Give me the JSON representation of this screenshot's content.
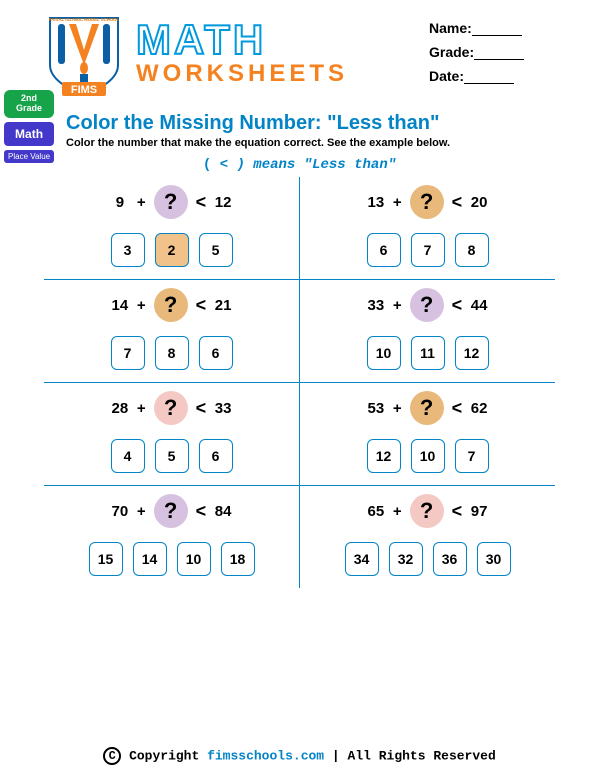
{
  "header": {
    "logo_top_text": "FAISAL ISLAMIC MODEL SCHOOL",
    "logo_bottom_text": "FIMS",
    "math_title": "MATH",
    "worksheets_title": "WORKSHEETS",
    "name_label": "Name:",
    "grade_label": "Grade:",
    "date_label": "Date:"
  },
  "side": {
    "grade_badge_line1": "2nd",
    "grade_badge_line2": "Grade",
    "math_badge": "Math",
    "topic_badge": "Place Value"
  },
  "instruction": {
    "title": "Color the Missing Number: \"Less than\"",
    "subtitle": "Color the number that make the equation correct.  See the example below.",
    "legend_prefix": "( ",
    "legend_symbol": "<",
    "legend_suffix": " )  means  \"Less than\""
  },
  "colors": {
    "q_purple": "#d7c1e0",
    "q_tan": "#e8b97a",
    "q_pink": "#f5c9c3",
    "highlight": "#f2c28b",
    "border": "#0284c7"
  },
  "problems": [
    {
      "row": 0,
      "col": 0,
      "a": "9",
      "b": "12",
      "qcolor": "#d7c1e0",
      "choices": [
        "3",
        "2",
        "5"
      ],
      "highlight": 1
    },
    {
      "row": 0,
      "col": 1,
      "a": "13",
      "b": "20",
      "qcolor": "#e8b97a",
      "choices": [
        "6",
        "7",
        "8"
      ],
      "highlight": -1
    },
    {
      "row": 1,
      "col": 0,
      "a": "14",
      "b": "21",
      "qcolor": "#e8b97a",
      "choices": [
        "7",
        "8",
        "6"
      ],
      "highlight": -1
    },
    {
      "row": 1,
      "col": 1,
      "a": "33",
      "b": "44",
      "qcolor": "#d7c1e0",
      "choices": [
        "10",
        "11",
        "12"
      ],
      "highlight": -1
    },
    {
      "row": 2,
      "col": 0,
      "a": "28",
      "b": "33",
      "qcolor": "#f5c9c3",
      "choices": [
        "4",
        "5",
        "6"
      ],
      "highlight": -1
    },
    {
      "row": 2,
      "col": 1,
      "a": "53",
      "b": "62",
      "qcolor": "#e8b97a",
      "choices": [
        "12",
        "10",
        "7"
      ],
      "highlight": -1
    },
    {
      "row": 3,
      "col": 0,
      "a": "70",
      "b": "84",
      "qcolor": "#d7c1e0",
      "choices": [
        "15",
        "14",
        "10",
        "18"
      ],
      "highlight": -1
    },
    {
      "row": 3,
      "col": 1,
      "a": "65",
      "b": "97",
      "qcolor": "#f5c9c3",
      "choices": [
        "34",
        "32",
        "36",
        "30"
      ],
      "highlight": -1
    }
  ],
  "footer": {
    "copyright": "Copyright ",
    "site": "fimsschools.com",
    "rights": " | All Rights Reserved"
  }
}
